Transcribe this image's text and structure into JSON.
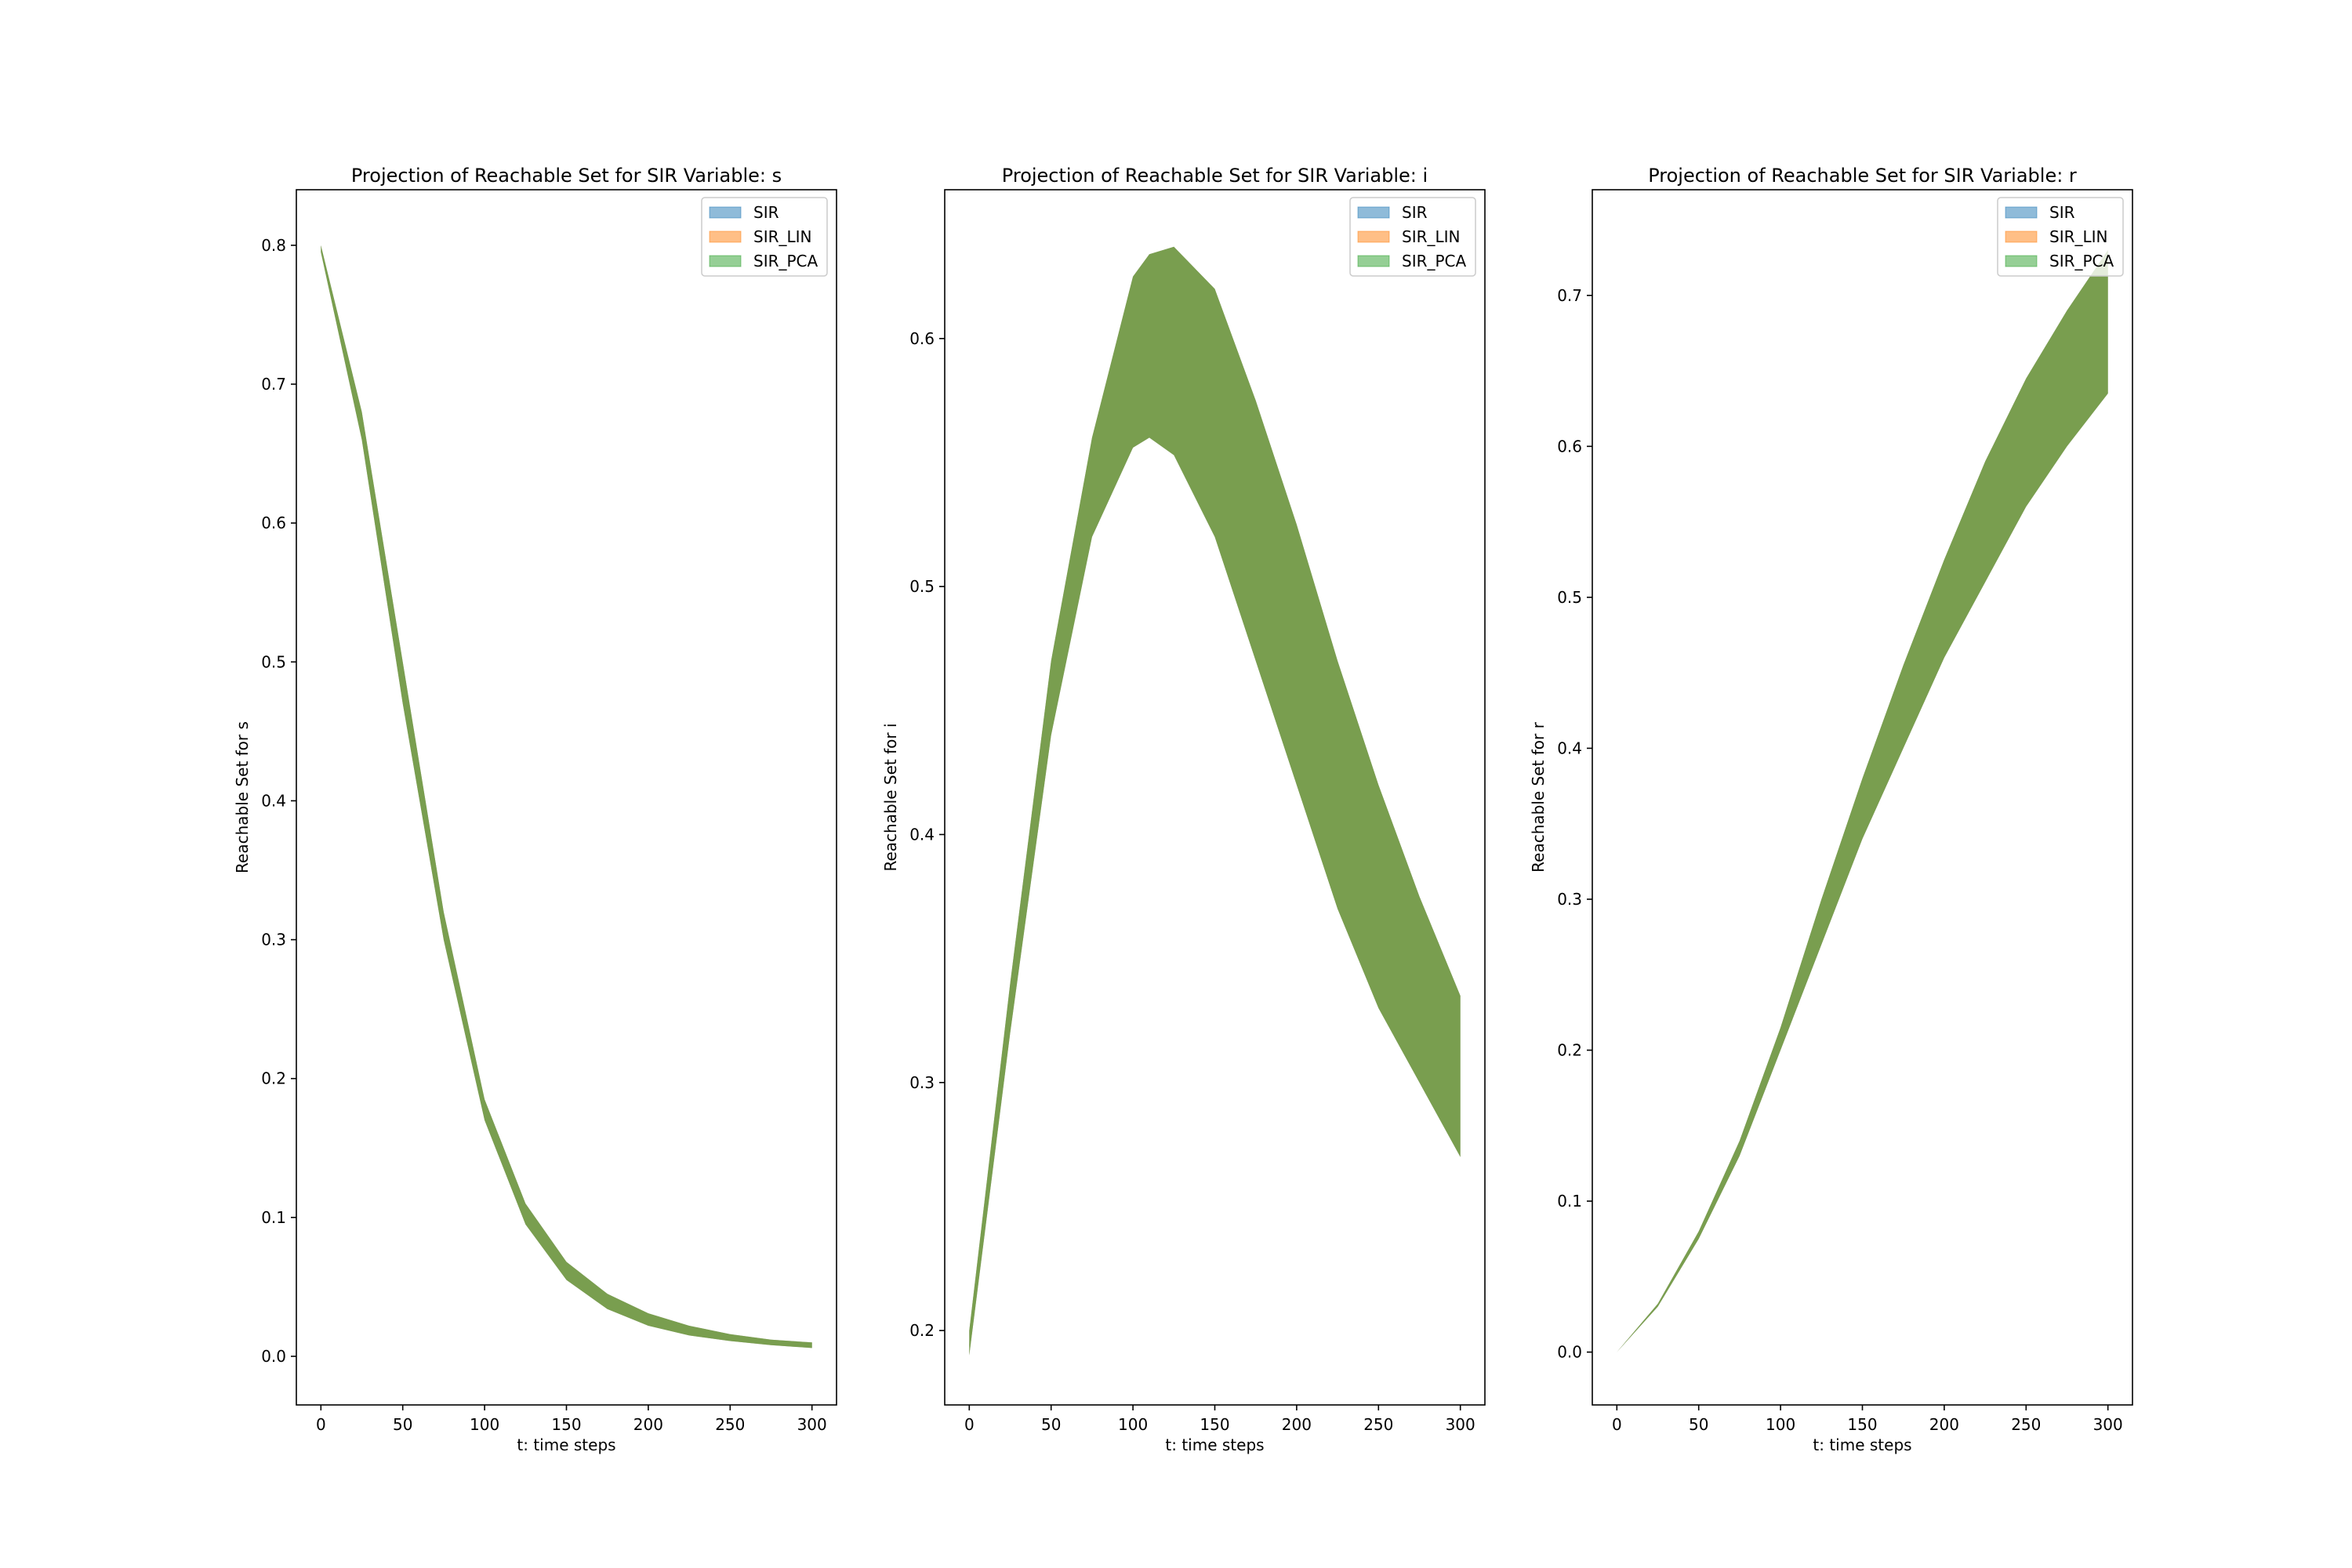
{
  "chart_data": [
    {
      "type": "area",
      "title": "Projection of Reachable Set for SIR Variable: s",
      "xlabel": "t: time steps",
      "ylabel": "Reachable Set for s",
      "xlim": [
        -15,
        315
      ],
      "ylim": [
        -0.035,
        0.84
      ],
      "xticks": [
        0,
        50,
        100,
        150,
        200,
        250,
        300
      ],
      "yticks": [
        0.0,
        0.1,
        0.2,
        0.3,
        0.4,
        0.5,
        0.6,
        0.7,
        0.8
      ],
      "legend_position": "top-right",
      "x": [
        0,
        25,
        50,
        75,
        100,
        125,
        150,
        175,
        200,
        225,
        250,
        275,
        300
      ],
      "series": [
        {
          "name": "SIR",
          "color": "#1f77b4",
          "lower": [
            0.795,
            0.66,
            0.47,
            0.3,
            0.17,
            0.095,
            0.055,
            0.034,
            0.022,
            0.015,
            0.011,
            0.008,
            0.006
          ],
          "upper": [
            0.8,
            0.68,
            0.5,
            0.32,
            0.185,
            0.11,
            0.068,
            0.045,
            0.031,
            0.022,
            0.016,
            0.012,
            0.01
          ]
        },
        {
          "name": "SIR_LIN",
          "color": "#ff7f0e",
          "lower": [
            0.795,
            0.66,
            0.47,
            0.3,
            0.17,
            0.095,
            0.055,
            0.034,
            0.022,
            0.015,
            0.011,
            0.008,
            0.006
          ],
          "upper": [
            0.8,
            0.68,
            0.5,
            0.32,
            0.185,
            0.11,
            0.068,
            0.045,
            0.031,
            0.022,
            0.016,
            0.012,
            0.01
          ]
        },
        {
          "name": "SIR_PCA",
          "color": "#2ca02c",
          "lower": [
            0.795,
            0.66,
            0.47,
            0.3,
            0.17,
            0.095,
            0.055,
            0.034,
            0.022,
            0.015,
            0.011,
            0.008,
            0.006
          ],
          "upper": [
            0.8,
            0.68,
            0.5,
            0.32,
            0.185,
            0.11,
            0.068,
            0.045,
            0.031,
            0.022,
            0.016,
            0.012,
            0.01
          ]
        }
      ]
    },
    {
      "type": "area",
      "title": "Projection of Reachable Set for SIR Variable: i",
      "xlabel": "t: time steps",
      "ylabel": "Reachable Set for i",
      "xlim": [
        -15,
        315
      ],
      "ylim": [
        0.17,
        0.66
      ],
      "xticks": [
        0,
        50,
        100,
        150,
        200,
        250,
        300
      ],
      "yticks": [
        0.2,
        0.3,
        0.4,
        0.5,
        0.6
      ],
      "legend_position": "top-right",
      "x": [
        0,
        25,
        50,
        75,
        100,
        110,
        125,
        150,
        175,
        200,
        225,
        250,
        275,
        300
      ],
      "series": [
        {
          "name": "SIR",
          "color": "#1f77b4",
          "lower": [
            0.19,
            0.32,
            0.44,
            0.52,
            0.556,
            0.56,
            0.553,
            0.52,
            0.47,
            0.42,
            0.37,
            0.33,
            0.3,
            0.27
          ],
          "upper": [
            0.2,
            0.34,
            0.47,
            0.56,
            0.625,
            0.634,
            0.637,
            0.62,
            0.575,
            0.525,
            0.47,
            0.42,
            0.375,
            0.335
          ]
        },
        {
          "name": "SIR_LIN",
          "color": "#ff7f0e",
          "lower": [
            0.19,
            0.32,
            0.44,
            0.52,
            0.556,
            0.56,
            0.553,
            0.52,
            0.47,
            0.42,
            0.37,
            0.33,
            0.3,
            0.27
          ],
          "upper": [
            0.2,
            0.34,
            0.47,
            0.56,
            0.625,
            0.634,
            0.637,
            0.62,
            0.575,
            0.525,
            0.47,
            0.42,
            0.375,
            0.335
          ]
        },
        {
          "name": "SIR_PCA",
          "color": "#2ca02c",
          "lower": [
            0.19,
            0.32,
            0.44,
            0.52,
            0.556,
            0.56,
            0.553,
            0.52,
            0.47,
            0.42,
            0.37,
            0.33,
            0.3,
            0.27
          ],
          "upper": [
            0.2,
            0.34,
            0.47,
            0.56,
            0.625,
            0.634,
            0.637,
            0.62,
            0.575,
            0.525,
            0.47,
            0.42,
            0.375,
            0.335
          ]
        }
      ]
    },
    {
      "type": "area",
      "title": "Projection of Reachable Set for SIR Variable: r",
      "xlabel": "t: time steps",
      "ylabel": "Reachable Set for r",
      "xlim": [
        -15,
        315
      ],
      "ylim": [
        -0.035,
        0.77
      ],
      "xticks": [
        0,
        50,
        100,
        150,
        200,
        250,
        300
      ],
      "yticks": [
        0.0,
        0.1,
        0.2,
        0.3,
        0.4,
        0.5,
        0.6,
        0.7
      ],
      "legend_position": "top-right",
      "x": [
        0,
        25,
        50,
        75,
        100,
        125,
        150,
        175,
        200,
        225,
        250,
        275,
        300
      ],
      "series": [
        {
          "name": "SIR",
          "color": "#1f77b4",
          "lower": [
            0.0,
            0.03,
            0.075,
            0.13,
            0.2,
            0.27,
            0.34,
            0.4,
            0.46,
            0.51,
            0.56,
            0.6,
            0.635
          ],
          "upper": [
            0.0,
            0.032,
            0.08,
            0.14,
            0.215,
            0.3,
            0.38,
            0.455,
            0.525,
            0.59,
            0.645,
            0.69,
            0.73
          ]
        },
        {
          "name": "SIR_LIN",
          "color": "#ff7f0e",
          "lower": [
            0.0,
            0.03,
            0.075,
            0.13,
            0.2,
            0.27,
            0.34,
            0.4,
            0.46,
            0.51,
            0.56,
            0.6,
            0.635
          ],
          "upper": [
            0.0,
            0.032,
            0.08,
            0.14,
            0.215,
            0.3,
            0.38,
            0.455,
            0.525,
            0.59,
            0.645,
            0.69,
            0.73
          ]
        },
        {
          "name": "SIR_PCA",
          "color": "#2ca02c",
          "lower": [
            0.0,
            0.03,
            0.075,
            0.13,
            0.2,
            0.27,
            0.34,
            0.4,
            0.46,
            0.51,
            0.56,
            0.6,
            0.635
          ],
          "upper": [
            0.0,
            0.032,
            0.08,
            0.14,
            0.215,
            0.3,
            0.38,
            0.455,
            0.525,
            0.59,
            0.645,
            0.69,
            0.73
          ]
        }
      ]
    }
  ]
}
